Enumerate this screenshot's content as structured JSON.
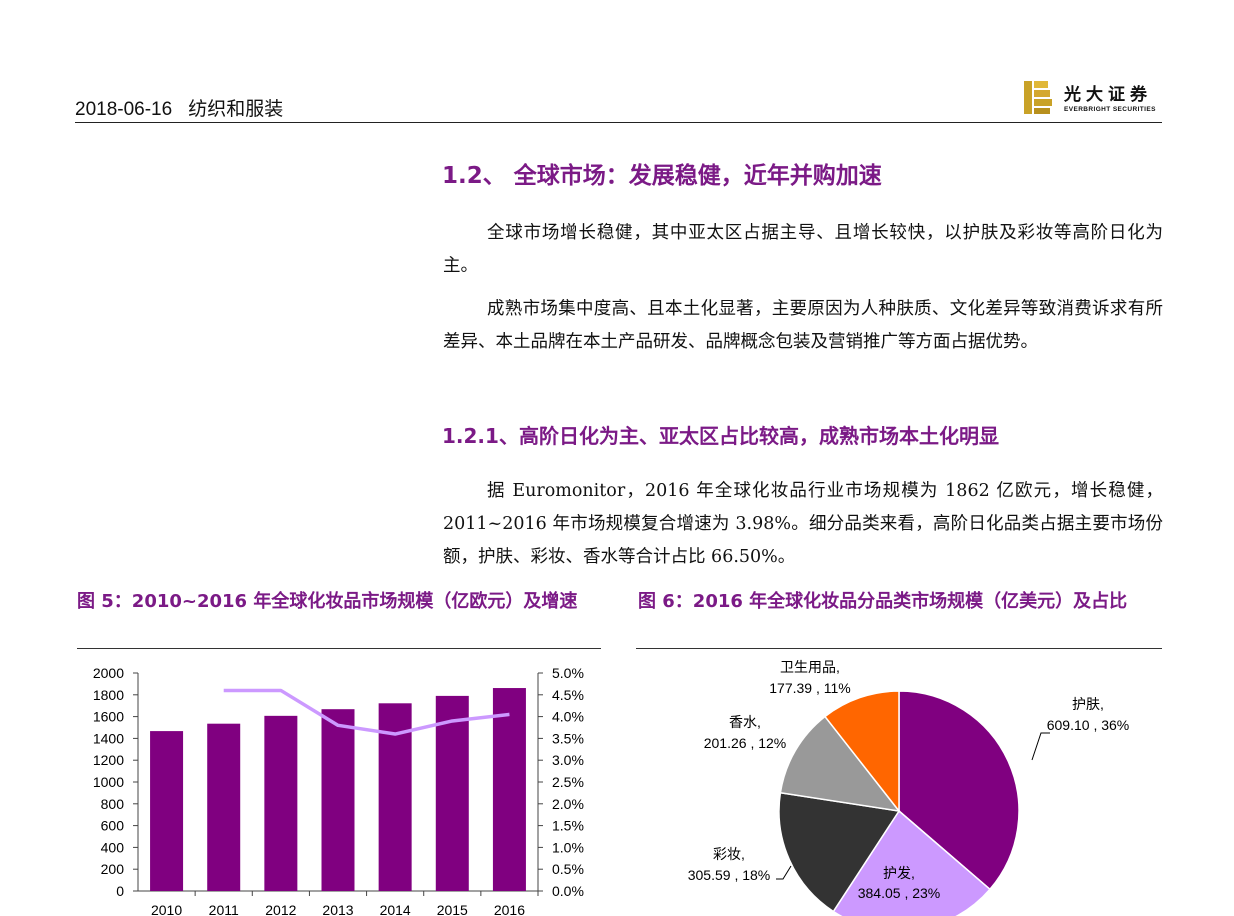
{
  "header": {
    "date": "2018-06-16",
    "sector": "纺织和服装"
  },
  "logo": {
    "name_cn": "光大证券",
    "name_en": "EVERBRIGHT SECURITIES"
  },
  "section": {
    "heading": "1.2、 全球市场：发展稳健，近年并购加速",
    "para1": "全球市场增长稳健，其中亚太区占据主导、且增长较快，以护肤及彩妆等高阶日化为主。",
    "para2": "成熟市场集中度高、且本土化显著，主要原因为人种肤质、文化差异等致消费诉求有所差异、本土品牌在本土产品研发、品牌概念包装及营销推广等方面占据优势。"
  },
  "subsection": {
    "heading": "1.2.1、高阶日化为主、亚太区占比较高，成熟市场本土化明显",
    "para": "据 Euromonitor，2016 年全球化妆品行业市场规模为 1862 亿欧元，增长稳健，2011~2016 年市场规模复合增速为 3.98%。细分品类来看，高阶日化品类占据主要市场份额，护肤、彩妆、香水等合计占比 66.50%。"
  },
  "figures": {
    "fig5_title": "图 5：2010~2016 年全球化妆品市场规模（亿欧元）及增速",
    "fig6_title": "图 6：2016 年全球化妆品分品类市场规模（亿美元）及占比"
  },
  "colors": {
    "accent": "#7b1a86",
    "bar": "#800080",
    "line": "#cc99ff"
  },
  "chart_data": [
    {
      "type": "bar",
      "title": "图 5：2010~2016 年全球化妆品市场规模（亿欧元）及增速",
      "categories": [
        "2010",
        "2011",
        "2012",
        "2013",
        "2014",
        "2015",
        "2016"
      ],
      "series": [
        {
          "name": "市场规模（亿欧元）",
          "axis": "left",
          "values": [
            1467,
            1535,
            1607,
            1668,
            1722,
            1790,
            1862
          ]
        },
        {
          "name": "增速",
          "axis": "right",
          "type": "line",
          "values": [
            null,
            4.6,
            4.6,
            3.8,
            3.6,
            3.9,
            4.05
          ]
        }
      ],
      "ylim": [
        0,
        2000
      ],
      "y_ticks": [
        "2000",
        "1800",
        "1600",
        "1400",
        "1200",
        "1000",
        "800",
        "600",
        "400",
        "200",
        "0"
      ],
      "y2lim": [
        0,
        5.0
      ],
      "y2_ticks": [
        "5.0%",
        "4.5%",
        "4.0%",
        "3.5%",
        "3.0%",
        "2.5%",
        "2.0%",
        "1.5%",
        "1.0%",
        "0.5%",
        "0.0%"
      ],
      "grid": false
    },
    {
      "type": "pie",
      "title": "图 6：2016 年全球化妆品分品类市场规模（亿美元）及占比",
      "slices": [
        {
          "name": "护肤",
          "value": 609.1,
          "pct": "36%",
          "color": "#800080",
          "label": "护肤,",
          "value_label": "609.10 , 36%"
        },
        {
          "name": "护发",
          "value": 384.05,
          "pct": "23%",
          "color": "#cc99ff",
          "label": "护发,",
          "value_label": "384.05 , 23%"
        },
        {
          "name": "彩妆",
          "value": 305.59,
          "pct": "18%",
          "color": "#333333",
          "label": "彩妆,",
          "value_label": "305.59 , 18%"
        },
        {
          "name": "香水",
          "value": 201.26,
          "pct": "12%",
          "color": "#999999",
          "label": "香水,",
          "value_label": "201.26 , 12%"
        },
        {
          "name": "卫生用品",
          "value": 177.39,
          "pct": "11%",
          "color": "#ff6600",
          "label": "卫生用品,",
          "value_label": "177.39 , 11%"
        }
      ]
    }
  ]
}
